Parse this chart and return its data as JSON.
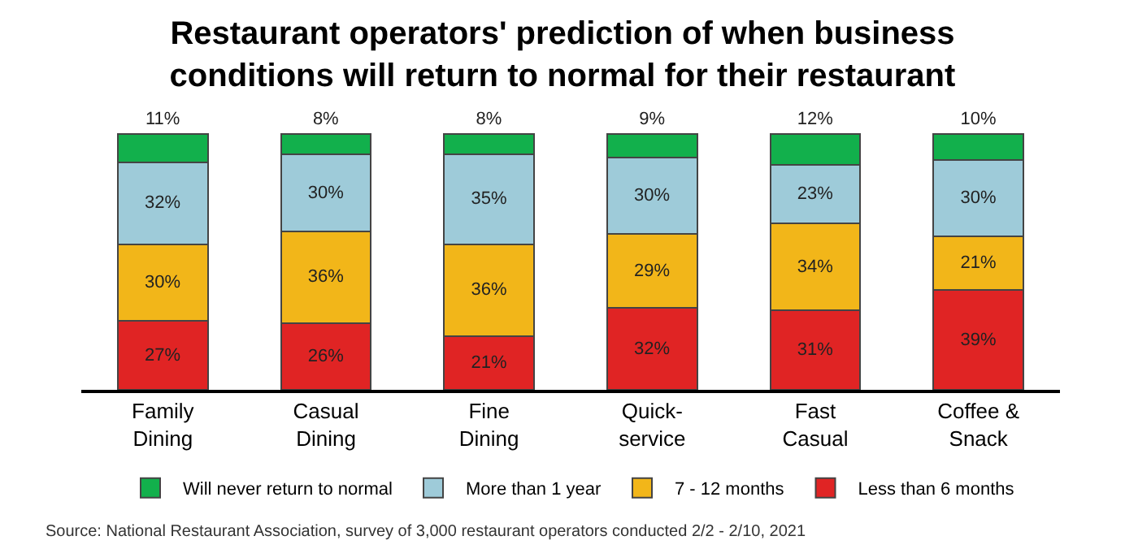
{
  "chart_data": {
    "type": "bar",
    "stacked": true,
    "title": "Restaurant operators' prediction of when business\nconditions will return to normal for their restaurant",
    "categories": [
      "Family\nDining",
      "Casual\nDining",
      "Fine\nDining",
      "Quick-\nservice",
      "Fast\nCasual",
      "Coffee &\nSnack"
    ],
    "series": [
      {
        "name": "Less than 6 months",
        "color": "#e02424",
        "values": [
          27,
          26,
          21,
          32,
          31,
          39
        ],
        "value_labels": [
          "27%",
          "26%",
          "21%",
          "32%",
          "31%",
          "39%"
        ]
      },
      {
        "name": "7 - 12 months",
        "color": "#f2b619",
        "values": [
          30,
          36,
          36,
          29,
          34,
          21
        ],
        "value_labels": [
          "30%",
          "36%",
          "36%",
          "29%",
          "34%",
          "21%"
        ]
      },
      {
        "name": "More than 1 year",
        "color": "#9ecbd9",
        "values": [
          32,
          30,
          35,
          30,
          23,
          30
        ],
        "value_labels": [
          "32%",
          "30%",
          "35%",
          "30%",
          "23%",
          "30%"
        ]
      },
      {
        "name": "Will never return to normal",
        "color": "#12b04c",
        "values": [
          11,
          8,
          8,
          9,
          12,
          10
        ],
        "value_labels": [
          "11%",
          "8%",
          "8%",
          "9%",
          "12%",
          "10%"
        ]
      }
    ],
    "legend": "bottom",
    "annotations": [
      "Source: National Restaurant Association, survey of 3,000 restaurant operators conducted 2/2 - 2/10, 2021"
    ]
  }
}
